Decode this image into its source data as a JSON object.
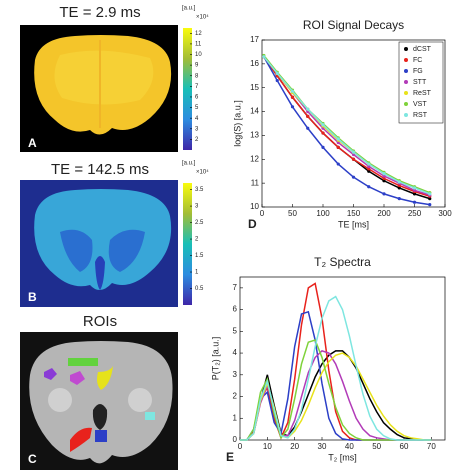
{
  "panels": [
    {
      "label": "A",
      "title": "TE = 2.9 ms",
      "colorbar": {
        "unit": "[a.u.]",
        "multiplier": "×10⁴",
        "lim": [
          1,
          12.5
        ],
        "ticks": [
          2,
          3,
          4,
          5,
          6,
          7,
          8,
          9,
          10,
          11,
          12
        ]
      }
    },
    {
      "label": "B",
      "title": "TE = 142.5 ms",
      "colorbar": {
        "unit": "[a.u.]",
        "multiplier": "×10⁴",
        "lim": [
          0,
          3.7
        ],
        "ticks": [
          0.5,
          1,
          1.5,
          2,
          2.5,
          3,
          3.5
        ]
      }
    },
    {
      "label": "C",
      "title": "ROIs"
    }
  ],
  "chart_data": [
    {
      "type": "line",
      "label": "D",
      "title": "ROI Signal Decays",
      "xlabel": "TE [ms]",
      "ylabel": "log(S) [a.u.]",
      "markers": true,
      "legend": "northeast",
      "x": [
        3,
        25,
        50,
        75,
        100,
        125,
        150,
        175,
        200,
        225,
        250,
        275
      ],
      "xlim": [
        0,
        300
      ],
      "xticks": [
        0,
        50,
        100,
        150,
        200,
        250,
        300
      ],
      "ylim": [
        10,
        17
      ],
      "yticks": [
        10,
        11,
        12,
        13,
        14,
        15,
        16,
        17
      ],
      "series": [
        {
          "name": "dCST",
          "color": "#000000",
          "values": [
            16.3,
            15.5,
            14.6,
            13.8,
            13.1,
            12.5,
            12.0,
            11.5,
            11.1,
            10.8,
            10.55,
            10.35
          ]
        },
        {
          "name": "FC",
          "color": "#e8221c",
          "values": [
            16.3,
            15.5,
            14.6,
            13.8,
            13.1,
            12.5,
            12.0,
            11.6,
            11.2,
            10.9,
            10.65,
            10.45
          ]
        },
        {
          "name": "FG",
          "color": "#2c3fc7",
          "values": [
            16.3,
            15.3,
            14.2,
            13.3,
            12.5,
            11.8,
            11.25,
            10.85,
            10.55,
            10.35,
            10.2,
            10.1
          ]
        },
        {
          "name": "STT",
          "color": "#b23bb8",
          "values": [
            16.3,
            15.6,
            14.8,
            14.0,
            13.3,
            12.7,
            12.2,
            11.7,
            11.3,
            11.0,
            10.7,
            10.5
          ]
        },
        {
          "name": "ReST",
          "color": "#e8e21a",
          "values": [
            16.3,
            15.6,
            14.8,
            14.1,
            13.4,
            12.8,
            12.3,
            11.8,
            11.4,
            11.1,
            10.8,
            10.6
          ]
        },
        {
          "name": "VST",
          "color": "#7fd23a",
          "values": [
            16.35,
            15.65,
            14.9,
            14.1,
            13.5,
            12.9,
            12.35,
            11.85,
            11.45,
            11.1,
            10.85,
            10.6
          ]
        },
        {
          "name": "RST",
          "color": "#7ee6e0",
          "values": [
            16.3,
            15.6,
            14.85,
            14.1,
            13.45,
            12.85,
            12.3,
            11.8,
            11.4,
            11.05,
            10.8,
            10.55
          ]
        }
      ]
    },
    {
      "type": "line",
      "label": "E",
      "title": "T₂ Spectra",
      "xlabel": "T₂ [ms]",
      "ylabel": "P(T₂) [a.u.]",
      "markers": false,
      "x": [
        0,
        2.5,
        5,
        7.5,
        10,
        12.5,
        15,
        17.5,
        20,
        22.5,
        25,
        27.5,
        30,
        32.5,
        35,
        37.5,
        40,
        42.5,
        45,
        47.5,
        50,
        52.5,
        55,
        57.5,
        60,
        62.5,
        65,
        67.5,
        70
      ],
      "xlim": [
        0,
        75
      ],
      "xticks": [
        0,
        10,
        20,
        30,
        40,
        50,
        60,
        70
      ],
      "ylim": [
        0,
        7.5
      ],
      "yticks": [
        0,
        1,
        2,
        3,
        4,
        5,
        6,
        7
      ],
      "series": [
        {
          "name": "dCST",
          "color": "#000000",
          "values": [
            0,
            0,
            0.3,
            1.8,
            3.0,
            1.6,
            0.3,
            0.2,
            0.6,
            1.3,
            2.1,
            2.9,
            3.5,
            3.9,
            4.1,
            4.1,
            3.8,
            3.3,
            2.6,
            1.9,
            1.3,
            0.8,
            0.5,
            0.25,
            0.1,
            0.05,
            0,
            0,
            0
          ]
        },
        {
          "name": "FC",
          "color": "#e8221c",
          "values": [
            0,
            0,
            0.4,
            1.9,
            2.4,
            1.0,
            0.1,
            0.8,
            2.8,
            5.3,
            7.0,
            7.2,
            5.6,
            3.2,
            1.3,
            0.4,
            0.1,
            0,
            0,
            0,
            0,
            0,
            0,
            0,
            0,
            0,
            0,
            0,
            0
          ]
        },
        {
          "name": "FG",
          "color": "#2c3fc7",
          "values": [
            0,
            0,
            0.5,
            1.9,
            2.2,
            0.8,
            0.3,
            1.9,
            4.3,
            5.8,
            5.9,
            4.6,
            2.6,
            1.0,
            0.3,
            0.05,
            0,
            0,
            0,
            0,
            0,
            0,
            0,
            0,
            0,
            0,
            0,
            0,
            0
          ]
        },
        {
          "name": "STT",
          "color": "#b23bb8",
          "values": [
            0,
            0,
            0.3,
            1.7,
            2.5,
            1.4,
            0.2,
            0.2,
            0.9,
            2.0,
            3.1,
            3.8,
            4.1,
            4.0,
            3.5,
            2.7,
            1.8,
            1.0,
            0.5,
            0.2,
            0.1,
            0.05,
            0,
            0,
            0,
            0,
            0,
            0,
            0
          ]
        },
        {
          "name": "ReST",
          "color": "#e8e21a",
          "values": [
            0,
            0,
            0.3,
            1.8,
            2.6,
            1.5,
            0.2,
            0.1,
            0.4,
            0.9,
            1.6,
            2.4,
            3.1,
            3.6,
            3.9,
            4.0,
            3.8,
            3.4,
            2.8,
            2.2,
            1.6,
            1.1,
            0.7,
            0.4,
            0.2,
            0.1,
            0.05,
            0,
            0
          ]
        },
        {
          "name": "VST",
          "color": "#7fd23a",
          "values": [
            0,
            0,
            0.5,
            2.2,
            2.8,
            1.2,
            0.1,
            0.5,
            1.9,
            3.5,
            4.5,
            4.6,
            3.8,
            2.6,
            1.5,
            0.7,
            0.3,
            0.1,
            0,
            0,
            0,
            0,
            0,
            0,
            0,
            0,
            0,
            0,
            0
          ]
        },
        {
          "name": "RST",
          "color": "#7ee6e0",
          "values": [
            0,
            0,
            0.3,
            1.9,
            2.7,
            1.4,
            0.2,
            0.1,
            0.5,
            1.4,
            2.8,
            4.3,
            5.6,
            6.4,
            6.6,
            6.0,
            4.8,
            3.4,
            2.1,
            1.1,
            0.5,
            0.2,
            0.05,
            0,
            0,
            0,
            0,
            0,
            0
          ]
        }
      ]
    }
  ]
}
